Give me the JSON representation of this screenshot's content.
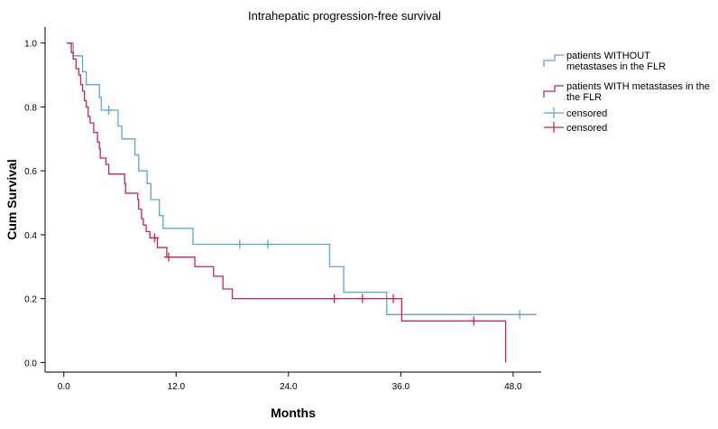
{
  "chart_data": {
    "type": "line",
    "subtype": "kaplan-meier",
    "title": "Intrahepatic progression-free survival",
    "xlabel": "Months",
    "ylabel": "Cum Survival",
    "xlim": [
      -2,
      51
    ],
    "ylim": [
      -0.03,
      1.05
    ],
    "xticks": [
      "0.0",
      "12.0",
      "24.0",
      "36.0",
      "48.0"
    ],
    "xtick_values": [
      0,
      12,
      24,
      36,
      48
    ],
    "yticks": [
      "0.0",
      "0.2",
      "0.4",
      "0.6",
      "0.8",
      "1.0"
    ],
    "ytick_values": [
      0,
      0.2,
      0.4,
      0.6,
      0.8,
      1.0
    ],
    "grid": false,
    "legend_position": "right",
    "series": [
      {
        "name": "patients WITHOUT metastases in the FLR",
        "legend_lines": [
          "patients WITHOUT",
          "metastases in the FLR"
        ],
        "color": "#5aa6d6",
        "steps": [
          [
            0.3,
            1.0
          ],
          [
            1.0,
            0.96
          ],
          [
            2.0,
            0.91
          ],
          [
            2.4,
            0.87
          ],
          [
            3.8,
            0.83
          ],
          [
            4.0,
            0.79
          ],
          [
            5.8,
            0.74
          ],
          [
            6.2,
            0.7
          ],
          [
            7.6,
            0.65
          ],
          [
            8.0,
            0.6
          ],
          [
            8.9,
            0.56
          ],
          [
            9.3,
            0.51
          ],
          [
            10.2,
            0.46
          ],
          [
            10.6,
            0.42
          ],
          [
            13.8,
            0.37
          ],
          [
            28.4,
            0.3
          ],
          [
            29.9,
            0.22
          ],
          [
            34.5,
            0.15
          ],
          [
            50.5,
            0.15
          ]
        ],
        "censored": [
          4.8,
          18.8,
          21.8,
          48.7
        ]
      },
      {
        "name": "patients WITH metastases in the FLR",
        "legend_lines": [
          "patients WITH metastases in the",
          "the FLR"
        ],
        "color": "#c8234f",
        "steps": [
          [
            0.3,
            1.0
          ],
          [
            0.8,
            0.97
          ],
          [
            1.0,
            0.95
          ],
          [
            1.3,
            0.92
          ],
          [
            1.6,
            0.9
          ],
          [
            1.8,
            0.87
          ],
          [
            2.0,
            0.85
          ],
          [
            2.2,
            0.82
          ],
          [
            2.4,
            0.8
          ],
          [
            2.6,
            0.77
          ],
          [
            2.8,
            0.75
          ],
          [
            3.2,
            0.72
          ],
          [
            3.6,
            0.69
          ],
          [
            3.8,
            0.67
          ],
          [
            3.9,
            0.64
          ],
          [
            4.5,
            0.62
          ],
          [
            4.8,
            0.59
          ],
          [
            6.5,
            0.56
          ],
          [
            6.6,
            0.53
          ],
          [
            7.9,
            0.51
          ],
          [
            8.0,
            0.48
          ],
          [
            8.3,
            0.45
          ],
          [
            8.5,
            0.43
          ],
          [
            8.8,
            0.41
          ],
          [
            9.2,
            0.39
          ],
          [
            10.0,
            0.36
          ],
          [
            11.0,
            0.33
          ],
          [
            14.0,
            0.3
          ],
          [
            16.0,
            0.27
          ],
          [
            17.0,
            0.23
          ],
          [
            18.0,
            0.2
          ],
          [
            36.1,
            0.13
          ],
          [
            47.2,
            0.0
          ]
        ],
        "censored": [
          9.7,
          11.2,
          28.9,
          31.9,
          35.2,
          43.8
        ]
      }
    ],
    "censored_legend": [
      {
        "label": "censored",
        "color": "#5aa6d6"
      },
      {
        "label": "censored",
        "color": "#c8234f"
      }
    ]
  }
}
